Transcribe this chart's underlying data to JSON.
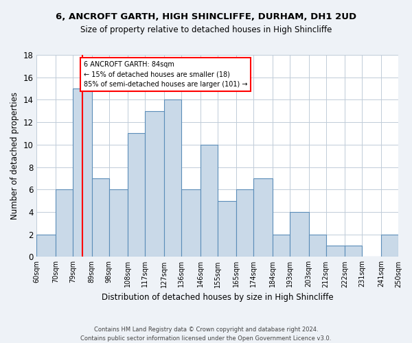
{
  "title": "6, ANCROFT GARTH, HIGH SHINCLIFFE, DURHAM, DH1 2UD",
  "subtitle": "Size of property relative to detached houses in High Shincliffe",
  "xlabel": "Distribution of detached houses by size in High Shincliffe",
  "ylabel": "Number of detached properties",
  "bins": [
    60,
    70,
    79,
    89,
    98,
    108,
    117,
    127,
    136,
    146,
    155,
    165,
    174,
    184,
    193,
    203,
    212,
    222,
    231,
    241,
    250
  ],
  "bin_labels": [
    "60sqm",
    "70sqm",
    "79sqm",
    "89sqm",
    "98sqm",
    "108sqm",
    "117sqm",
    "127sqm",
    "136sqm",
    "146sqm",
    "155sqm",
    "165sqm",
    "174sqm",
    "184sqm",
    "193sqm",
    "203sqm",
    "212sqm",
    "222sqm",
    "231sqm",
    "241sqm",
    "250sqm"
  ],
  "counts": [
    2,
    6,
    15,
    7,
    6,
    11,
    13,
    14,
    6,
    10,
    5,
    6,
    7,
    2,
    4,
    2,
    1,
    1,
    0,
    2
  ],
  "bar_color": "#c9d9e8",
  "bar_edge_color": "#5b8db8",
  "reference_line_x": 84,
  "reference_line_color": "red",
  "ylim": [
    0,
    18
  ],
  "yticks": [
    0,
    2,
    4,
    6,
    8,
    10,
    12,
    14,
    16,
    18
  ],
  "annotation_title": "6 ANCROFT GARTH: 84sqm",
  "annotation_line1": "← 15% of detached houses are smaller (18)",
  "annotation_line2": "85% of semi-detached houses are larger (101) →",
  "annotation_box_color": "red",
  "footer_line1": "Contains HM Land Registry data © Crown copyright and database right 2024.",
  "footer_line2": "Contains public sector information licensed under the Open Government Licence v3.0.",
  "background_color": "#eef2f7",
  "plot_background_color": "#ffffff",
  "grid_color": "#c0ccd8"
}
